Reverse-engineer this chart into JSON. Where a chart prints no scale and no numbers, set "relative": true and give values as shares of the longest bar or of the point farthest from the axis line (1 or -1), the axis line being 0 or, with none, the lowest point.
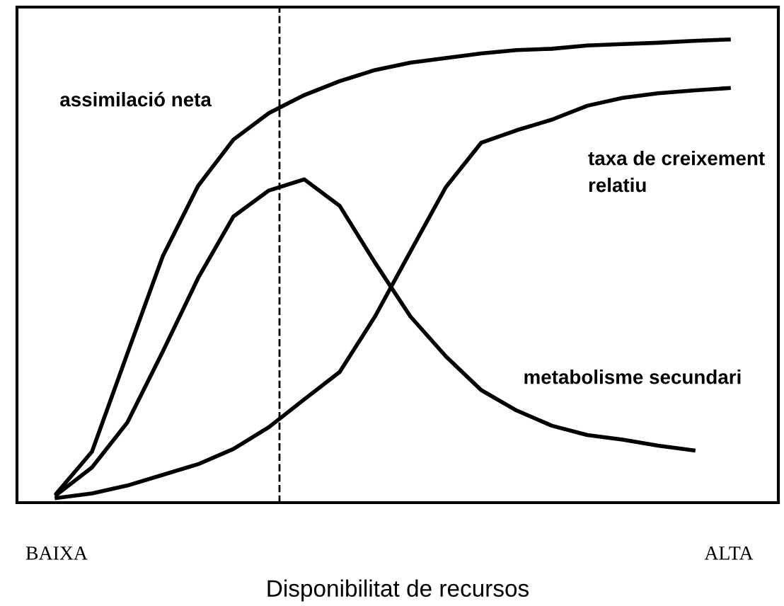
{
  "chart_data": {
    "type": "line",
    "relative": true,
    "xlabel": "Disponibilitat de recursos",
    "categories": [
      "BAIXA",
      null,
      null,
      null,
      null,
      null,
      null,
      null,
      null,
      null,
      null,
      null,
      null,
      null,
      null,
      null,
      null,
      null,
      null,
      "ALTA"
    ],
    "tick_labels": "x",
    "grid": false,
    "legend": false,
    "series": [
      {
        "name": "assimilació neta",
        "color": "#000000",
        "values": [
          0.02,
          0.11,
          0.322,
          0.532,
          0.684,
          0.784,
          0.841,
          0.88,
          0.91,
          0.934,
          0.95,
          0.96,
          0.97,
          0.977,
          0.98,
          0.987,
          0.99,
          0.993,
          0.997,
          1
        ]
      },
      {
        "name": "taxa de creixement\nrelatiu",
        "color": "#000000",
        "values": [
          0.01,
          0.02,
          0.037,
          0.06,
          0.083,
          0.116,
          0.163,
          0.223,
          0.282,
          0.402,
          0.542,
          0.681,
          0.777,
          0.804,
          0.827,
          0.857,
          0.874,
          0.884,
          0.89,
          0.895
        ]
      },
      {
        "name": "metabolisme secundari",
        "color": "#000000",
        "values": [
          0.017,
          0.076,
          0.173,
          0.326,
          0.485,
          0.618,
          0.674,
          0.698,
          0.641,
          0.518,
          0.402,
          0.316,
          0.243,
          0.199,
          0.166,
          0.146,
          0.136,
          0.123,
          0.113,
          null
        ]
      }
    ]
  }
}
